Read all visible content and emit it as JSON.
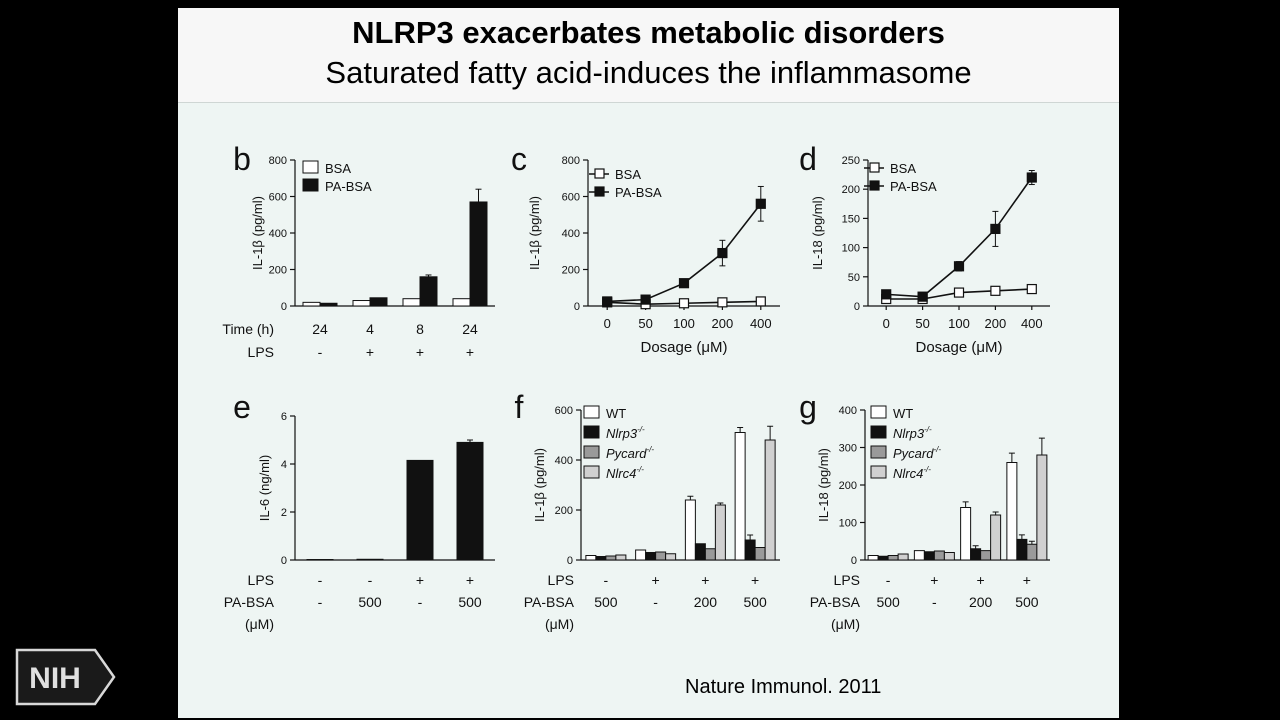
{
  "slide": {
    "title": "NLRP3 exacerbates metabolic disorders",
    "subtitle": "Saturated fatty acid-induces the inflammasome",
    "citation": "Nature Immunol. 2011",
    "logo_text": "NIH"
  },
  "colors": {
    "black": "#111111",
    "white": "#ffffff",
    "grey": "#9a9a9a",
    "light_grey": "#d0d0d0",
    "background": "#eef5f3"
  },
  "chart_data": [
    {
      "panel": "b",
      "type": "bar",
      "ylabel": "IL-1β (pg/ml)",
      "ylim": [
        0,
        800
      ],
      "yticks": [
        0,
        200,
        400,
        600,
        800
      ],
      "legend": [
        "BSA",
        "PA-BSA"
      ],
      "row_labels": [
        "Time (h)",
        "LPS"
      ],
      "groups": [
        [
          "24",
          "-"
        ],
        [
          "4",
          "+"
        ],
        [
          "8",
          "+"
        ],
        [
          "24",
          "+"
        ]
      ],
      "series": [
        {
          "name": "BSA",
          "values": [
            20,
            30,
            40,
            40
          ],
          "errors": [
            0,
            0,
            0,
            0
          ]
        },
        {
          "name": "PA-BSA",
          "values": [
            15,
            45,
            160,
            570
          ],
          "errors": [
            0,
            0,
            10,
            70
          ]
        }
      ]
    },
    {
      "panel": "c",
      "type": "line",
      "ylabel": "IL-1β (pg/ml)",
      "xlabel": "Dosage (μM)",
      "ylim": [
        0,
        800
      ],
      "yticks": [
        0,
        200,
        400,
        600,
        800
      ],
      "categories": [
        "0",
        "50",
        "100",
        "200",
        "400"
      ],
      "legend": [
        "BSA",
        "PA-BSA"
      ],
      "series": [
        {
          "name": "BSA",
          "values": [
            20,
            10,
            15,
            20,
            25
          ],
          "errors": [
            0,
            0,
            0,
            0,
            0
          ]
        },
        {
          "name": "PA-BSA",
          "values": [
            25,
            35,
            125,
            290,
            560
          ],
          "errors": [
            0,
            0,
            10,
            70,
            95
          ]
        }
      ]
    },
    {
      "panel": "d",
      "type": "line",
      "ylabel": "IL-18 (pg/ml)",
      "xlabel": "Dosage (μM)",
      "ylim": [
        0,
        250
      ],
      "yticks": [
        0,
        50,
        100,
        150,
        200,
        250
      ],
      "categories": [
        "0",
        "50",
        "100",
        "200",
        "400"
      ],
      "legend": [
        "BSA",
        "PA-BSA"
      ],
      "series": [
        {
          "name": "BSA",
          "values": [
            12,
            12,
            23,
            26,
            29
          ],
          "errors": [
            0,
            0,
            5,
            5,
            5
          ]
        },
        {
          "name": "PA-BSA",
          "values": [
            20,
            16,
            68,
            132,
            220
          ],
          "errors": [
            4,
            4,
            8,
            30,
            12
          ]
        }
      ]
    },
    {
      "panel": "e",
      "type": "bar",
      "ylabel": "IL-6 (ng/ml)",
      "ylim": [
        0,
        6
      ],
      "yticks": [
        0,
        2,
        4,
        6
      ],
      "row_labels": [
        "LPS",
        "PA-BSA",
        "(μM)"
      ],
      "groups": [
        [
          "-",
          "-"
        ],
        [
          "-",
          "500"
        ],
        [
          "+",
          "-"
        ],
        [
          "+",
          "500"
        ]
      ],
      "series": [
        {
          "name": "",
          "values": [
            0.02,
            0.03,
            4.15,
            4.9
          ],
          "errors": [
            0,
            0,
            0,
            0.1
          ]
        }
      ]
    },
    {
      "panel": "f",
      "type": "bar",
      "ylabel": "IL-1β (pg/ml)",
      "ylim": [
        0,
        600
      ],
      "yticks": [
        0,
        200,
        400,
        600
      ],
      "legend": [
        "WT",
        "Nlrp3",
        "Pycard",
        "Nlrc4"
      ],
      "legend_superscript": "-/-",
      "row_labels": [
        "LPS",
        "PA-BSA",
        "(μM)"
      ],
      "groups": [
        [
          "-",
          "500"
        ],
        [
          "+",
          "-"
        ],
        [
          "+",
          "200"
        ],
        [
          "+",
          "500"
        ]
      ],
      "series": [
        {
          "name": "WT",
          "values": [
            18,
            40,
            240,
            510
          ],
          "errors": [
            0,
            0,
            15,
            20
          ]
        },
        {
          "name": "Nlrp3",
          "values": [
            14,
            30,
            65,
            80
          ],
          "errors": [
            0,
            0,
            0,
            20
          ]
        },
        {
          "name": "Pycard",
          "values": [
            16,
            32,
            45,
            50
          ],
          "errors": [
            0,
            0,
            0,
            0
          ]
        },
        {
          "name": "Nlrc4",
          "values": [
            20,
            25,
            220,
            480
          ],
          "errors": [
            0,
            0,
            8,
            55
          ]
        }
      ]
    },
    {
      "panel": "g",
      "type": "bar",
      "ylabel": "IL-18 (pg/ml)",
      "ylim": [
        0,
        400
      ],
      "yticks": [
        0,
        100,
        200,
        300,
        400
      ],
      "legend": [
        "WT",
        "Nlrp3",
        "Pycard",
        "Nlrc4"
      ],
      "legend_superscript": "-/-",
      "row_labels": [
        "LPS",
        "PA-BSA",
        "(μM)"
      ],
      "groups": [
        [
          "-",
          "500"
        ],
        [
          "+",
          "-"
        ],
        [
          "+",
          "200"
        ],
        [
          "+",
          "500"
        ]
      ],
      "series": [
        {
          "name": "WT",
          "values": [
            12,
            25,
            140,
            260
          ],
          "errors": [
            0,
            0,
            15,
            25
          ]
        },
        {
          "name": "Nlrp3",
          "values": [
            10,
            22,
            30,
            55
          ],
          "errors": [
            0,
            0,
            8,
            12
          ]
        },
        {
          "name": "Pycard",
          "values": [
            12,
            24,
            25,
            42
          ],
          "errors": [
            0,
            0,
            0,
            8
          ]
        },
        {
          "name": "Nlrc4",
          "values": [
            16,
            20,
            120,
            280
          ],
          "errors": [
            0,
            0,
            8,
            45
          ]
        }
      ]
    }
  ]
}
